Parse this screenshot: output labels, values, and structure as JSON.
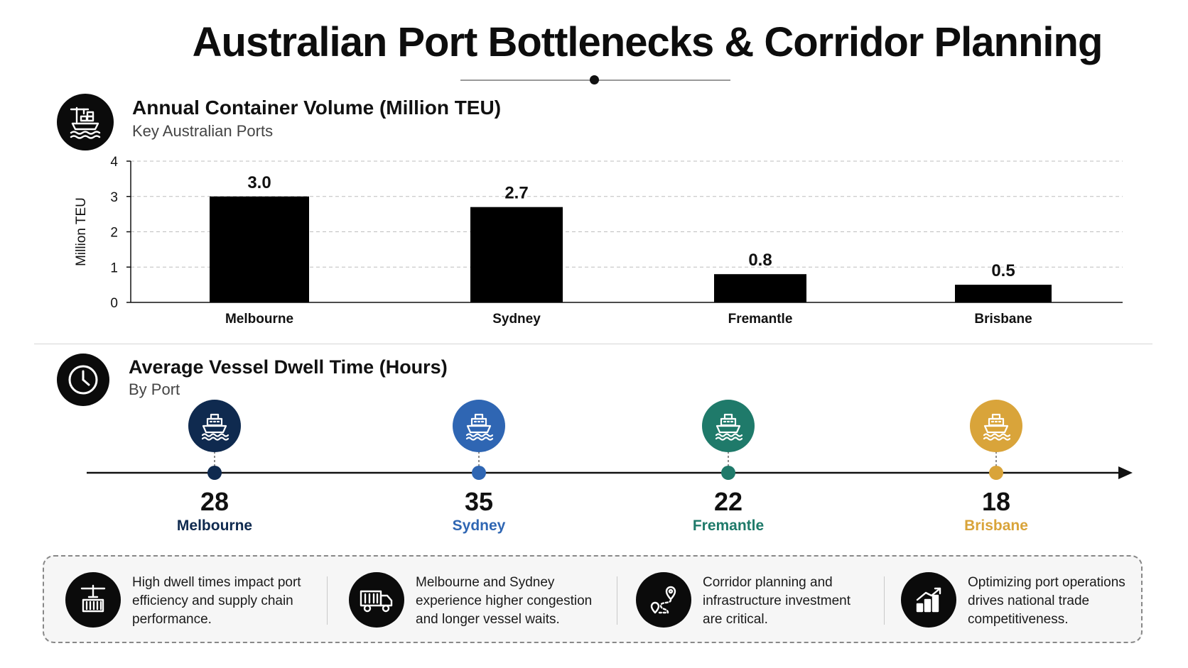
{
  "page": {
    "title": "Australian Port Bottlenecks & Corridor Planning"
  },
  "chart_data": [
    {
      "type": "bar",
      "title": "Annual Container Volume (Million TEU)",
      "subtitle": "Key Australian Ports",
      "ylabel": "Million TEU",
      "ylim": [
        0,
        4
      ],
      "yticks": [
        0,
        1,
        2,
        3,
        4
      ],
      "categories": [
        "Melbourne",
        "Sydney",
        "Fremantle",
        "Brisbane"
      ],
      "values": [
        3.0,
        2.7,
        0.8,
        0.5
      ],
      "value_labels": [
        "3.0",
        "2.7",
        "0.8",
        "0.5"
      ],
      "bar_color": "#000000",
      "grid": "horizontal dashed"
    },
    {
      "type": "timeline",
      "title": "Average Vessel Dwell Time (Hours)",
      "subtitle": "By Port",
      "categories": [
        "Melbourne",
        "Sydney",
        "Fremantle",
        "Brisbane"
      ],
      "values": [
        28,
        35,
        22,
        18
      ],
      "colors": [
        "#0f2a4f",
        "#2f66b3",
        "#1f7a6a",
        "#d9a43a"
      ],
      "icon": "ship-icon"
    }
  ],
  "insights": [
    {
      "icon": "crane-container-icon",
      "text": "High dwell times impact port efficiency and supply chain performance."
    },
    {
      "icon": "truck-icon",
      "text": "Melbourne and Sydney experience higher congestion and longer vessel waits."
    },
    {
      "icon": "route-pin-icon",
      "text": "Corridor planning and infrastructure investment are critical."
    },
    {
      "icon": "growth-chart-icon",
      "text": "Optimizing port operations drives national trade competitiveness."
    }
  ]
}
